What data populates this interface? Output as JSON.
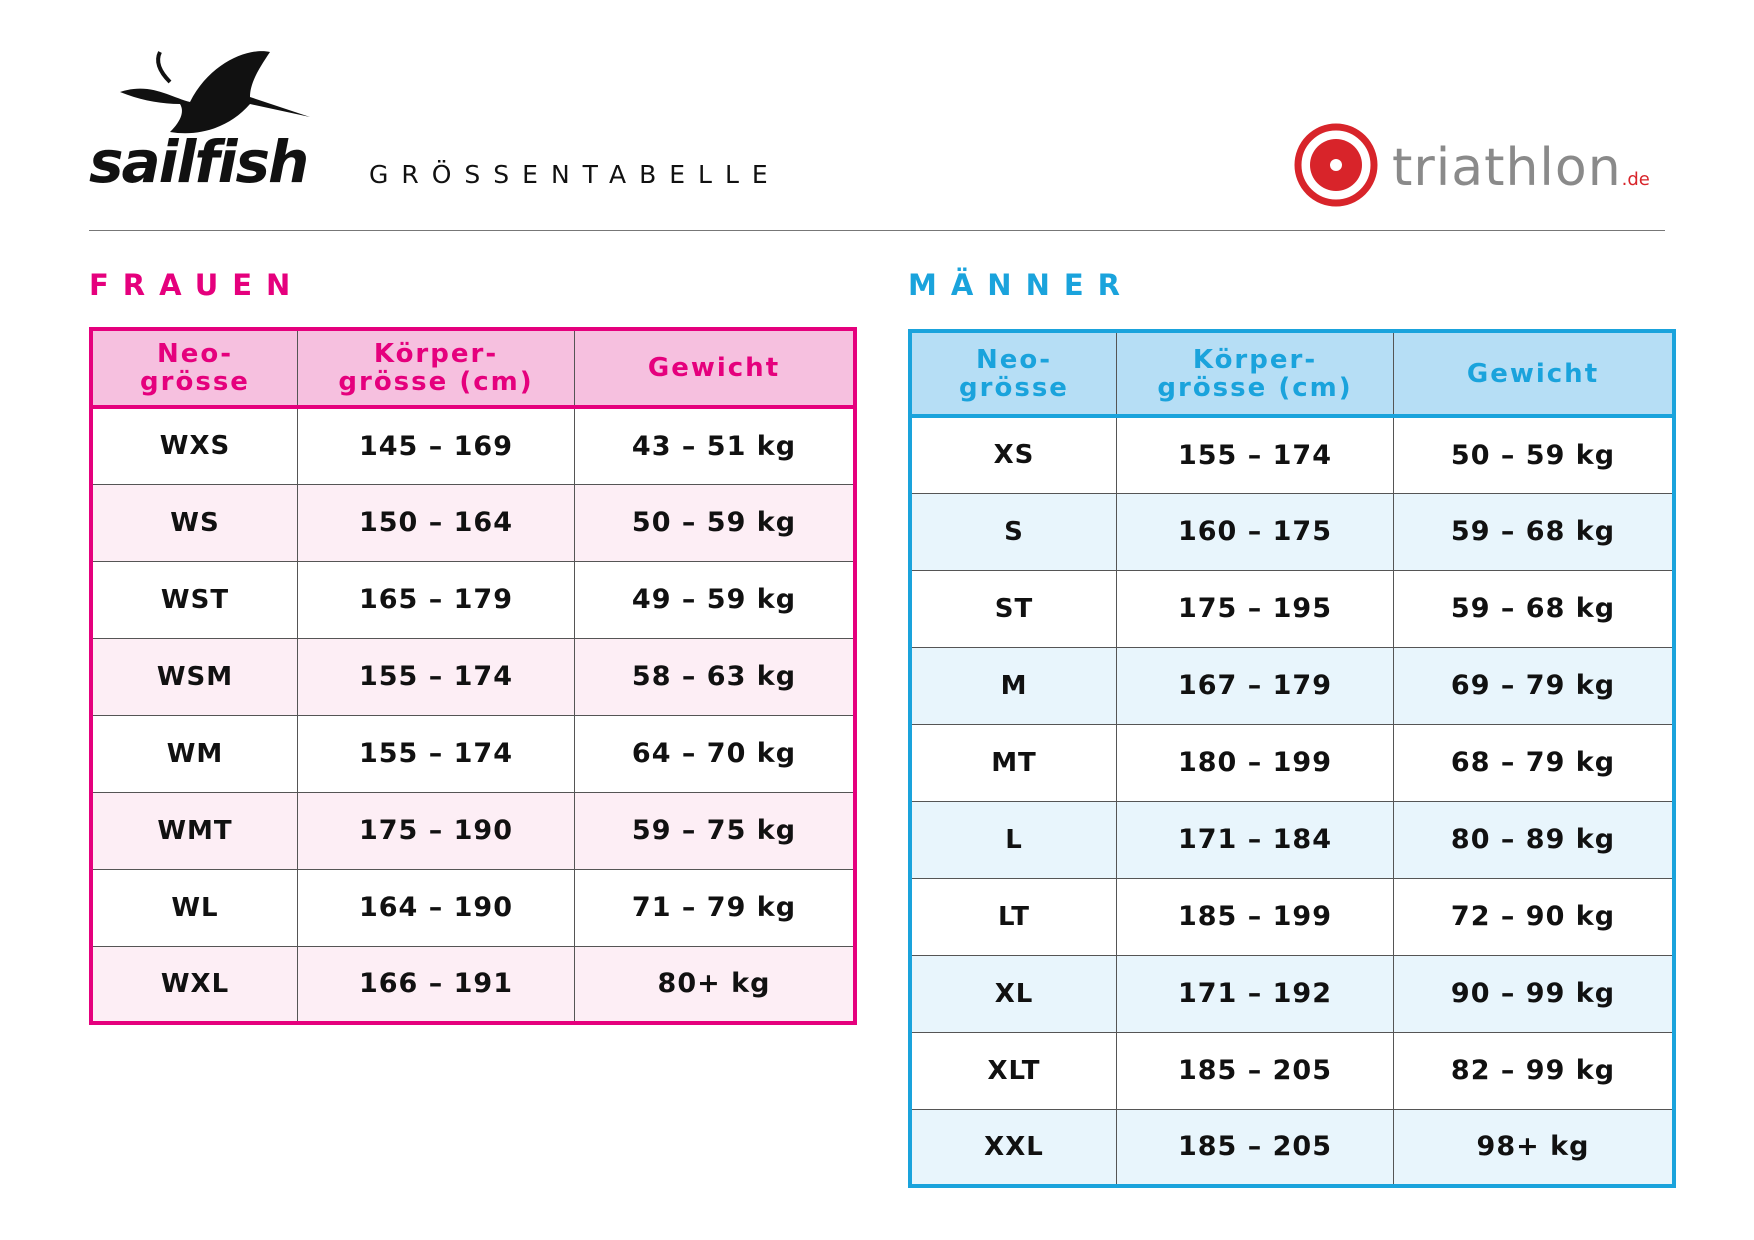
{
  "header": {
    "brand": "sailfish",
    "title": "GRÖSSENTABELLE",
    "partner": "triathlon",
    "partner_tld": ".de"
  },
  "tables": [
    {
      "title": "FRAUEN",
      "columns": [
        [
          "Neo-",
          "grösse"
        ],
        [
          "Körper-",
          "grösse (cm)"
        ],
        [
          "Gewicht"
        ]
      ],
      "rows": [
        [
          "WXS",
          "145 – 169",
          "43 – 51 kg"
        ],
        [
          "WS",
          "150 – 164",
          "50 – 59 kg"
        ],
        [
          "WST",
          "165 – 179",
          "49 – 59 kg"
        ],
        [
          "WSM",
          "155 – 174",
          "58 – 63 kg"
        ],
        [
          "WM",
          "155 – 174",
          "64 – 70 kg"
        ],
        [
          "WMT",
          "175 – 190",
          "59 – 75 kg"
        ],
        [
          "WL",
          "164 – 190",
          "71 – 79 kg"
        ],
        [
          "WXL",
          "166 – 191",
          "80+ kg"
        ]
      ]
    },
    {
      "title": "MÄNNER",
      "columns": [
        [
          "Neo-",
          "grösse"
        ],
        [
          "Körper-",
          "grösse (cm)"
        ],
        [
          "Gewicht"
        ]
      ],
      "rows": [
        [
          "XS",
          "155 – 174",
          "50 – 59 kg"
        ],
        [
          "S",
          "160 – 175",
          "59 – 68 kg"
        ],
        [
          "ST",
          "175 – 195",
          "59 – 68 kg"
        ],
        [
          "M",
          "167 – 179",
          "69 – 79 kg"
        ],
        [
          "MT",
          "180 – 199",
          "68 – 79 kg"
        ],
        [
          "L",
          "171 – 184",
          "80 – 89 kg"
        ],
        [
          "LT",
          "185 – 199",
          "72 – 90 kg"
        ],
        [
          "XL",
          "171 – 192",
          "90 – 99 kg"
        ],
        [
          "XLT",
          "185 – 205",
          "82 – 99 kg"
        ],
        [
          "XXL",
          "185 – 205",
          "98+ kg"
        ]
      ]
    }
  ]
}
